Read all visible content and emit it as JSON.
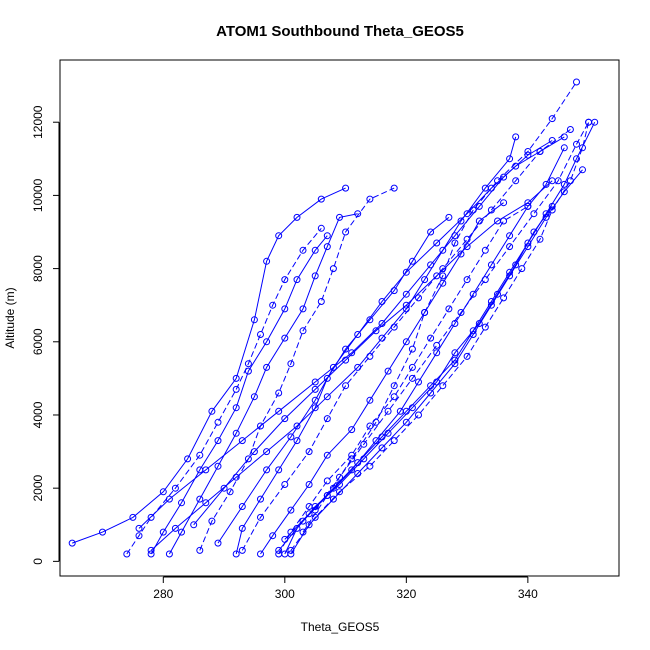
{
  "chart_data": {
    "type": "line",
    "title": "ATOM1 Southbound Theta_GEOS5",
    "xlabel": "Theta_GEOS5",
    "ylabel": "Altitude (m)",
    "xlim": [
      263,
      355
    ],
    "ylim": [
      -400,
      13700
    ],
    "x_ticks": [
      280,
      300,
      320,
      340
    ],
    "y_ticks": [
      0,
      2000,
      4000,
      6000,
      8000,
      10000,
      12000
    ],
    "grid": false,
    "series_color": "#0000ff",
    "marker": "open-circle",
    "line_style": "solid and dashed",
    "series": [
      {
        "points": [
          [
            265,
            500
          ],
          [
            270,
            800
          ],
          [
            275,
            1200
          ],
          [
            280,
            1900
          ],
          [
            284,
            2800
          ],
          [
            288,
            4100
          ],
          [
            292,
            5000
          ],
          [
            295,
            6600
          ],
          [
            297,
            8200
          ],
          [
            299,
            8900
          ],
          [
            302,
            9400
          ],
          [
            306,
            9900
          ],
          [
            310,
            10200
          ]
        ]
      },
      {
        "points": [
          [
            274,
            200
          ],
          [
            276,
            700
          ],
          [
            278,
            1200
          ],
          [
            282,
            2000
          ],
          [
            286,
            2900
          ],
          [
            289,
            3800
          ],
          [
            292,
            4700
          ],
          [
            294,
            5400
          ],
          [
            296,
            6200
          ],
          [
            298,
            7000
          ],
          [
            300,
            7700
          ],
          [
            303,
            8500
          ],
          [
            306,
            9100
          ]
        ]
      },
      {
        "points": [
          [
            278,
            200
          ],
          [
            280,
            800
          ],
          [
            283,
            1600
          ],
          [
            286,
            2500
          ],
          [
            289,
            3300
          ],
          [
            292,
            4200
          ],
          [
            294,
            5200
          ],
          [
            297,
            6000
          ],
          [
            300,
            6900
          ],
          [
            302,
            7700
          ],
          [
            305,
            8500
          ],
          [
            307,
            8900
          ]
        ]
      },
      {
        "points": [
          [
            281,
            200
          ],
          [
            283,
            800
          ],
          [
            286,
            1700
          ],
          [
            289,
            2600
          ],
          [
            292,
            3500
          ],
          [
            295,
            4500
          ],
          [
            297,
            5300
          ],
          [
            300,
            6100
          ],
          [
            303,
            6900
          ],
          [
            305,
            7800
          ],
          [
            307,
            8600
          ],
          [
            309,
            9400
          ],
          [
            312,
            9500
          ]
        ]
      },
      {
        "points": [
          [
            286,
            300
          ],
          [
            288,
            1100
          ],
          [
            291,
            1900
          ],
          [
            294,
            2800
          ],
          [
            296,
            3700
          ],
          [
            299,
            4600
          ],
          [
            301,
            5400
          ],
          [
            303,
            6300
          ],
          [
            306,
            7100
          ],
          [
            308,
            8000
          ],
          [
            310,
            9000
          ],
          [
            314,
            9900
          ],
          [
            318,
            10200
          ]
        ]
      },
      {
        "points": [
          [
            292,
            200
          ],
          [
            293,
            900
          ],
          [
            296,
            1700
          ],
          [
            299,
            2500
          ],
          [
            302,
            3300
          ],
          [
            305,
            4200
          ],
          [
            307,
            5000
          ],
          [
            310,
            5800
          ],
          [
            314,
            6600
          ],
          [
            318,
            7400
          ],
          [
            321,
            8200
          ],
          [
            324,
            9000
          ],
          [
            327,
            9400
          ]
        ]
      },
      {
        "points": [
          [
            296,
            200
          ],
          [
            298,
            700
          ],
          [
            301,
            1400
          ],
          [
            304,
            2100
          ],
          [
            307,
            2900
          ],
          [
            311,
            3600
          ],
          [
            314,
            4400
          ],
          [
            317,
            5200
          ],
          [
            320,
            6000
          ],
          [
            323,
            6800
          ],
          [
            326,
            7600
          ],
          [
            329,
            8400
          ],
          [
            332,
            9300
          ],
          [
            336,
            9800
          ]
        ]
      },
      {
        "points": [
          [
            299,
            200
          ],
          [
            301,
            800
          ],
          [
            304,
            1500
          ],
          [
            307,
            2200
          ],
          [
            311,
            2900
          ],
          [
            314,
            3700
          ],
          [
            318,
            4500
          ],
          [
            321,
            5300
          ],
          [
            324,
            6100
          ],
          [
            327,
            6900
          ],
          [
            330,
            7700
          ],
          [
            333,
            8500
          ],
          [
            336,
            9300
          ],
          [
            340,
            9700
          ]
        ]
      },
      {
        "points": [
          [
            300,
            200
          ],
          [
            302,
            900
          ],
          [
            305,
            1500
          ],
          [
            309,
            2100
          ],
          [
            313,
            2800
          ],
          [
            317,
            3500
          ],
          [
            321,
            4200
          ],
          [
            325,
            4900
          ],
          [
            328,
            5700
          ],
          [
            332,
            6500
          ],
          [
            335,
            7300
          ],
          [
            338,
            8100
          ],
          [
            341,
            9000
          ],
          [
            344,
            9700
          ]
        ]
      },
      {
        "points": [
          [
            301,
            200
          ],
          [
            304,
            1000
          ],
          [
            308,
            1700
          ],
          [
            312,
            2400
          ],
          [
            316,
            3100
          ],
          [
            320,
            3800
          ],
          [
            324,
            4600
          ],
          [
            328,
            5400
          ],
          [
            331,
            6200
          ],
          [
            334,
            7000
          ],
          [
            337,
            7800
          ],
          [
            340,
            8600
          ],
          [
            343,
            9400
          ],
          [
            346,
            10100
          ],
          [
            349,
            10700
          ]
        ]
      },
      {
        "points": [
          [
            301,
            300
          ],
          [
            305,
            1200
          ],
          [
            309,
            1900
          ],
          [
            314,
            2600
          ],
          [
            318,
            3300
          ],
          [
            322,
            4000
          ],
          [
            326,
            4800
          ],
          [
            330,
            5600
          ],
          [
            333,
            6400
          ],
          [
            336,
            7200
          ],
          [
            339,
            8000
          ],
          [
            342,
            8800
          ],
          [
            344,
            9600
          ],
          [
            347,
            10400
          ],
          [
            349,
            11300
          ],
          [
            350,
            12000
          ]
        ]
      },
      {
        "points": [
          [
            300,
            600
          ],
          [
            304,
            1300
          ],
          [
            308,
            2000
          ],
          [
            312,
            2700
          ],
          [
            316,
            3400
          ],
          [
            320,
            4100
          ],
          [
            324,
            4800
          ],
          [
            328,
            5500
          ],
          [
            331,
            6300
          ],
          [
            334,
            7100
          ],
          [
            337,
            7900
          ],
          [
            340,
            8700
          ],
          [
            343,
            9500
          ],
          [
            346,
            10300
          ],
          [
            348,
            11000
          ],
          [
            351,
            12000
          ]
        ]
      },
      {
        "points": [
          [
            278,
            300
          ],
          [
            282,
            900
          ],
          [
            287,
            1600
          ],
          [
            292,
            2300
          ],
          [
            297,
            3000
          ],
          [
            302,
            3700
          ],
          [
            307,
            4500
          ],
          [
            312,
            5300
          ],
          [
            316,
            6100
          ],
          [
            320,
            6900
          ],
          [
            323,
            7700
          ],
          [
            326,
            8500
          ],
          [
            329,
            9300
          ],
          [
            333,
            10200
          ],
          [
            337,
            11000
          ],
          [
            338,
            11600
          ]
        ]
      },
      {
        "points": [
          [
            303,
            800
          ],
          [
            307,
            1800
          ],
          [
            311,
            2800
          ],
          [
            315,
            3800
          ],
          [
            318,
            4800
          ],
          [
            321,
            5800
          ],
          [
            323,
            6800
          ],
          [
            326,
            7800
          ],
          [
            328,
            8700
          ],
          [
            331,
            9600
          ],
          [
            335,
            10400
          ],
          [
            340,
            11200
          ],
          [
            344,
            12100
          ],
          [
            348,
            13100
          ]
        ]
      },
      {
        "points": [
          [
            289,
            500
          ],
          [
            293,
            1500
          ],
          [
            297,
            2500
          ],
          [
            301,
            3400
          ],
          [
            305,
            4400
          ],
          [
            308,
            5300
          ],
          [
            312,
            6200
          ],
          [
            316,
            7100
          ],
          [
            320,
            7900
          ],
          [
            325,
            8700
          ],
          [
            330,
            9500
          ],
          [
            334,
            10200
          ],
          [
            338,
            10800
          ],
          [
            342,
            11200
          ],
          [
            346,
            11600
          ]
        ]
      },
      {
        "points": [
          [
            276,
            900
          ],
          [
            281,
            1700
          ],
          [
            287,
            2500
          ],
          [
            293,
            3300
          ],
          [
            299,
            4100
          ],
          [
            305,
            4900
          ],
          [
            311,
            5700
          ],
          [
            316,
            6500
          ],
          [
            320,
            7300
          ],
          [
            324,
            8100
          ],
          [
            328,
            8900
          ],
          [
            332,
            9700
          ],
          [
            336,
            10500
          ],
          [
            340,
            11100
          ],
          [
            344,
            11500
          ]
        ]
      },
      {
        "points": [
          [
            293,
            300
          ],
          [
            296,
            1200
          ],
          [
            300,
            2100
          ],
          [
            304,
            3000
          ],
          [
            307,
            3900
          ],
          [
            310,
            4800
          ],
          [
            314,
            5600
          ],
          [
            318,
            6400
          ],
          [
            322,
            7200
          ],
          [
            326,
            8000
          ],
          [
            330,
            8800
          ],
          [
            334,
            9600
          ],
          [
            338,
            10400
          ],
          [
            342,
            11200
          ],
          [
            347,
            11800
          ]
        ]
      },
      {
        "points": [
          [
            285,
            1000
          ],
          [
            290,
            2000
          ],
          [
            295,
            3000
          ],
          [
            300,
            3900
          ],
          [
            305,
            4700
          ],
          [
            310,
            5500
          ],
          [
            315,
            6300
          ],
          [
            320,
            7000
          ],
          [
            325,
            7800
          ],
          [
            330,
            8600
          ],
          [
            335,
            9300
          ],
          [
            340,
            9800
          ],
          [
            344,
            10400
          ]
        ]
      },
      {
        "points": [
          [
            299,
            300
          ],
          [
            303,
            1100
          ],
          [
            307,
            1800
          ],
          [
            311,
            2500
          ],
          [
            315,
            3300
          ],
          [
            319,
            4100
          ],
          [
            322,
            4900
          ],
          [
            325,
            5700
          ],
          [
            328,
            6500
          ],
          [
            331,
            7300
          ],
          [
            334,
            8100
          ],
          [
            337,
            8900
          ],
          [
            340,
            9700
          ],
          [
            343,
            10300
          ],
          [
            346,
            11300
          ]
        ]
      },
      {
        "points": [
          [
            305,
            1400
          ],
          [
            309,
            2300
          ],
          [
            313,
            3200
          ],
          [
            317,
            4100
          ],
          [
            321,
            5000
          ],
          [
            325,
            5900
          ],
          [
            329,
            6800
          ],
          [
            333,
            7700
          ],
          [
            337,
            8600
          ],
          [
            341,
            9500
          ],
          [
            345,
            10400
          ],
          [
            348,
            11400
          ],
          [
            350,
            12000
          ]
        ]
      }
    ]
  }
}
